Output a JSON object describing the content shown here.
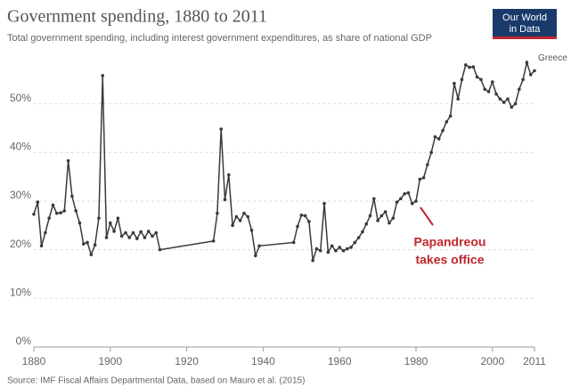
{
  "chart_data": {
    "type": "line",
    "title": "Government spending, 1880 to 2011",
    "subtitle": "Total government spending, including interest government expenditures, as share of national GDP",
    "source": "Source: IMF Fiscal Affairs Departmental Data, based on Mauro et al. (2015)",
    "logo": [
      "Our World",
      "in Data"
    ],
    "annotation": [
      "Papandreou",
      "takes office"
    ],
    "annotation_color": "#c0272d",
    "x": [
      1880,
      1881,
      1882,
      1883,
      1884,
      1885,
      1886,
      1887,
      1888,
      1889,
      1890,
      1891,
      1892,
      1893,
      1894,
      1895,
      1896,
      1897,
      1898,
      1899,
      1900,
      1901,
      1902,
      1903,
      1904,
      1905,
      1906,
      1907,
      1908,
      1909,
      1910,
      1911,
      1912,
      1913,
      1927,
      1928,
      1929,
      1930,
      1931,
      1932,
      1933,
      1934,
      1935,
      1936,
      1937,
      1938,
      1939,
      1948,
      1949,
      1950,
      1951,
      1952,
      1953,
      1954,
      1955,
      1956,
      1957,
      1958,
      1959,
      1960,
      1961,
      1962,
      1963,
      1964,
      1965,
      1966,
      1967,
      1968,
      1969,
      1970,
      1971,
      1972,
      1973,
      1974,
      1975,
      1976,
      1977,
      1978,
      1979,
      1980,
      1981,
      1982,
      1983,
      1984,
      1985,
      1986,
      1987,
      1988,
      1989,
      1990,
      1991,
      1992,
      1993,
      1994,
      1995,
      1996,
      1997,
      1998,
      1999,
      2000,
      2001,
      2002,
      2003,
      2004,
      2005,
      2006,
      2007,
      2008,
      2009,
      2010,
      2011
    ],
    "series": [
      {
        "name": "Greece",
        "color": "#3a3a3a",
        "values": [
          27.3,
          29.8,
          20.8,
          23.5,
          26.5,
          29.2,
          27.5,
          27.6,
          28.0,
          38.3,
          31.0,
          28.0,
          25.5,
          21.2,
          21.5,
          19.0,
          21.0,
          26.5,
          55.8,
          22.5,
          25.5,
          23.8,
          26.5,
          22.8,
          23.5,
          22.5,
          23.5,
          22.3,
          23.7,
          22.5,
          23.8,
          22.8,
          23.5,
          20.0,
          21.8,
          27.5,
          44.8,
          30.3,
          35.4,
          25.0,
          26.8,
          26.0,
          27.5,
          26.8,
          24.0,
          18.8,
          20.8,
          21.5,
          24.8,
          27.1,
          27.0,
          25.8,
          17.8,
          20.2,
          19.8,
          29.5,
          19.5,
          20.8,
          19.8,
          20.5,
          19.8,
          20.2,
          20.5,
          21.5,
          22.5,
          23.7,
          25.3,
          27.0,
          30.5,
          26.0,
          27.0,
          27.8,
          25.5,
          26.5,
          29.8,
          30.5,
          31.5,
          31.7,
          29.5,
          30.0,
          34.5,
          34.8,
          37.5,
          40.0,
          43.2,
          42.8,
          44.5,
          46.3,
          47.5,
          54.2,
          51.0,
          55.0,
          58.0,
          57.5,
          57.6,
          55.5,
          55.0,
          53.0,
          52.5,
          54.5,
          52.0,
          51.0,
          50.3,
          51.0,
          49.3,
          50.0,
          53.0,
          55.0,
          58.5,
          56.0,
          56.8
        ]
      }
    ],
    "xlim": [
      1880,
      2011
    ],
    "xticks": [
      1880,
      1900,
      1920,
      1940,
      1960,
      1980,
      2000,
      2011
    ],
    "ylim": [
      0,
      60
    ],
    "yticks": [
      {
        "value": 0,
        "label": "0%"
      },
      {
        "value": 10,
        "label": "10%"
      },
      {
        "value": 20,
        "label": "20%"
      },
      {
        "value": 30,
        "label": "30%"
      },
      {
        "value": 40,
        "label": "40%"
      },
      {
        "value": 50,
        "label": "50%"
      }
    ],
    "grid": true
  }
}
